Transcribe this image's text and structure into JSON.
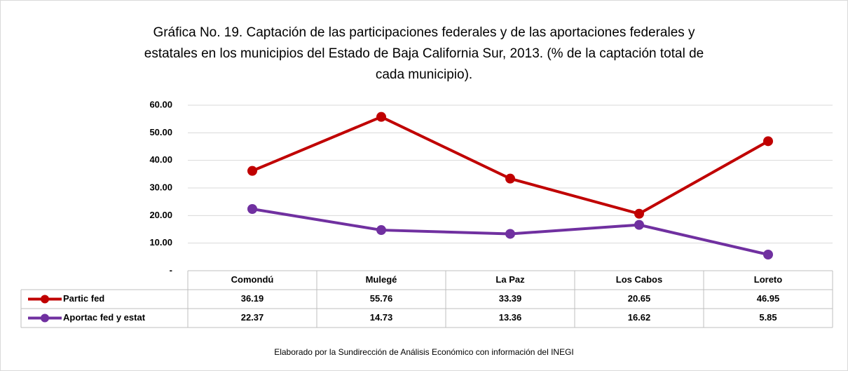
{
  "chart_data": {
    "type": "line",
    "title": [
      "Gráfica No. 19. Captación de las participaciones federales y de las aportaciones federales y",
      "estatales en los municipios del Estado de Baja California Sur, 2013. (% de la captación total de",
      "cada municipio)."
    ],
    "categories": [
      "Comondú",
      "Mulegé",
      "La Paz",
      "Los Cabos",
      "Loreto"
    ],
    "series": [
      {
        "name": "Partic fed",
        "color": "#c00000",
        "values": [
          36.19,
          55.76,
          33.39,
          20.65,
          46.95
        ]
      },
      {
        "name": "Aportac fed y estat",
        "color": "#7030a0",
        "values": [
          22.37,
          14.73,
          13.36,
          16.62,
          5.85
        ]
      }
    ],
    "ylim": [
      0,
      60
    ],
    "yticks": [
      {
        "value": 0,
        "label": "-"
      },
      {
        "value": 10,
        "label": "10.00"
      },
      {
        "value": 20,
        "label": "20.00"
      },
      {
        "value": 30,
        "label": "30.00"
      },
      {
        "value": 40,
        "label": "40.00"
      },
      {
        "value": 50,
        "label": "50.00"
      },
      {
        "value": 60,
        "label": "60.00"
      }
    ],
    "grid": true,
    "note": "Elaborado por la Sundirección de Análisis Económico con información del INEGI"
  }
}
